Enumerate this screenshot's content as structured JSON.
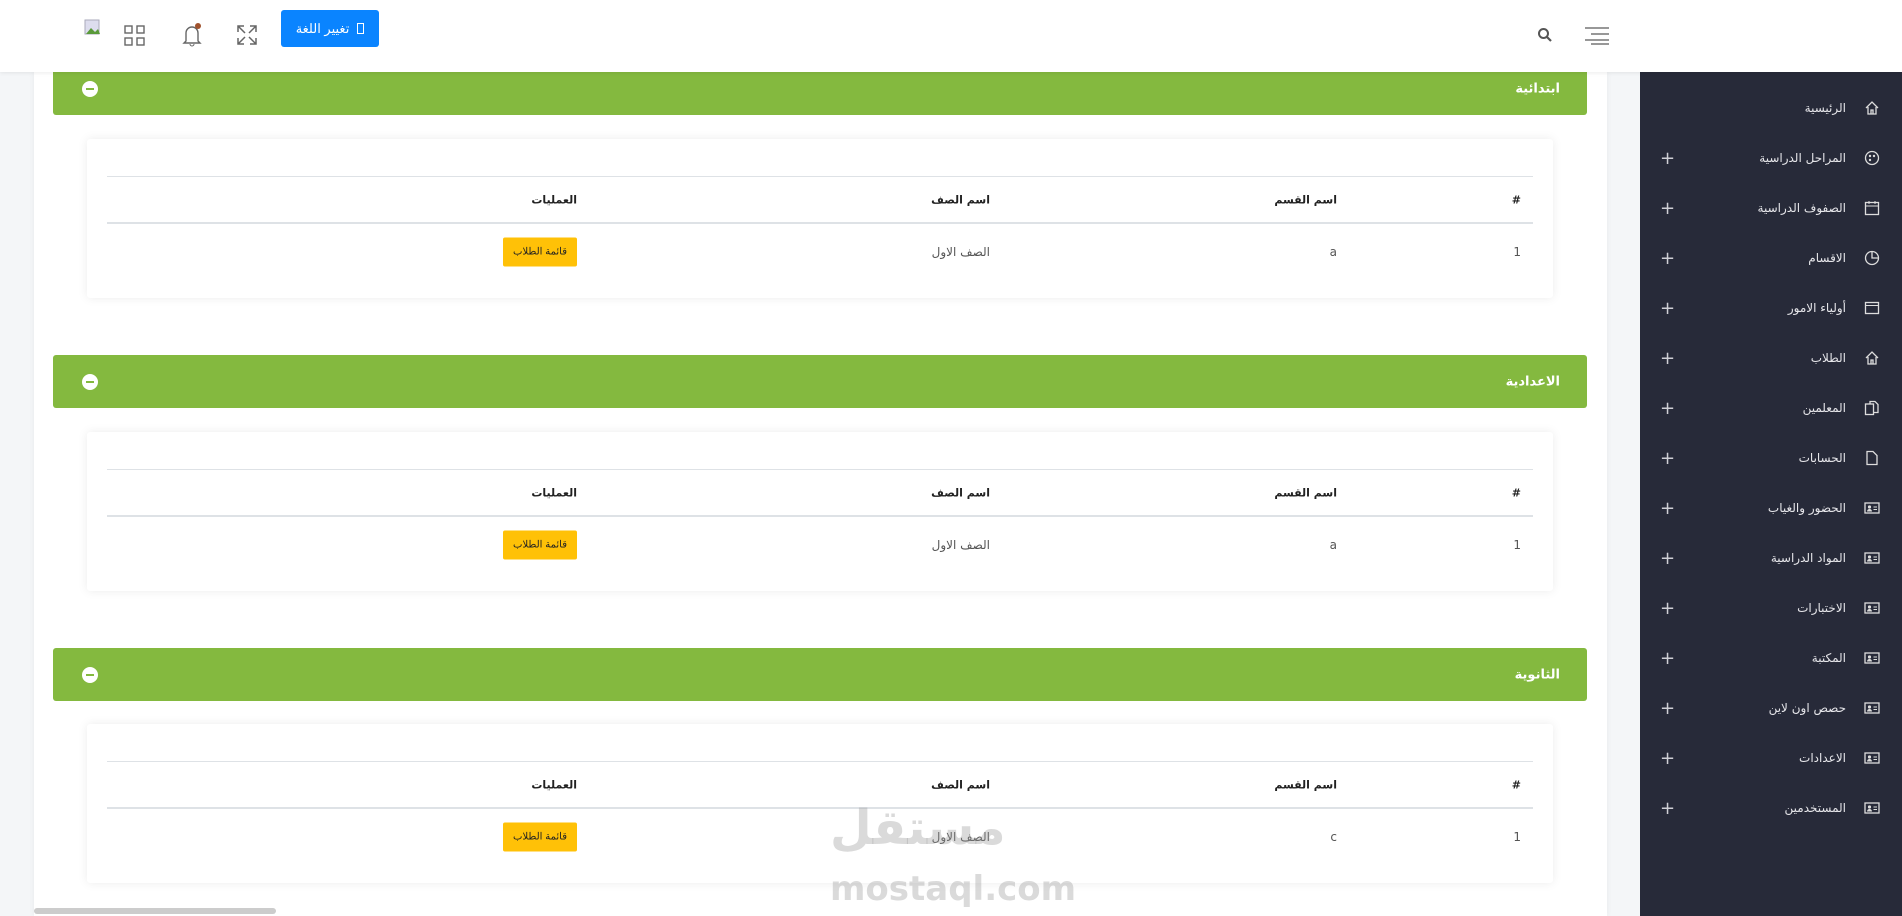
{
  "header": {
    "language_button": "تغيير اللغة",
    "icons": [
      "hamburger-icon",
      "search-icon",
      "fullscreen-icon",
      "bell-icon",
      "grid-icon",
      "avatar-image"
    ]
  },
  "sidebar": {
    "items": [
      {
        "label": "الرئيسية",
        "icon": "home-icon",
        "expandable": false
      },
      {
        "label": "المراحل الدراسية",
        "icon": "palette-icon",
        "expandable": true
      },
      {
        "label": "الصفوف الدراسية",
        "icon": "calendar-icon",
        "expandable": true
      },
      {
        "label": "الاقسام",
        "icon": "pie-chart-icon",
        "expandable": true
      },
      {
        "label": "أولياء الامور",
        "icon": "browser-icon",
        "expandable": true
      },
      {
        "label": "الطلاب",
        "icon": "home-icon",
        "expandable": true
      },
      {
        "label": "المعلمين",
        "icon": "copy-icon",
        "expandable": true
      },
      {
        "label": "الحسابات",
        "icon": "file-icon",
        "expandable": true
      },
      {
        "label": "الحضور والغياب",
        "icon": "id-card-icon",
        "expandable": true
      },
      {
        "label": "المواد الدراسية",
        "icon": "id-card-icon",
        "expandable": true
      },
      {
        "label": "الاختبارات",
        "icon": "id-card-icon",
        "expandable": true
      },
      {
        "label": "المكتبة",
        "icon": "id-card-icon",
        "expandable": true
      },
      {
        "label": "حصص اون لاين",
        "icon": "id-card-icon",
        "expandable": true
      },
      {
        "label": "الاعدادات",
        "icon": "id-card-icon",
        "expandable": true
      },
      {
        "label": "المستخدمين",
        "icon": "id-card-icon",
        "expandable": true
      }
    ]
  },
  "table_headers": {
    "num": "#",
    "section": "اسم القسم",
    "class": "اسم الصف",
    "actions": "العمليات"
  },
  "sections": [
    {
      "title": "ابتدائية",
      "rows": [
        {
          "num": "1",
          "section": "a",
          "class": "الصف الاول",
          "action": "قائمة الطلاب"
        }
      ]
    },
    {
      "title": "الاعدادية",
      "rows": [
        {
          "num": "1",
          "section": "a",
          "class": "الصف الاول",
          "action": "قائمة الطلاب"
        }
      ]
    },
    {
      "title": "الثانوية",
      "rows": [
        {
          "num": "1",
          "section": "c",
          "class": "الصف الاول",
          "action": "قائمة الطلاب"
        }
      ]
    }
  ],
  "watermark": "mostaql.com",
  "colors": {
    "sidebar": "#272a39",
    "section_bar": "#84b93f",
    "primary": "#0a84ff",
    "warning": "#ffc107"
  }
}
